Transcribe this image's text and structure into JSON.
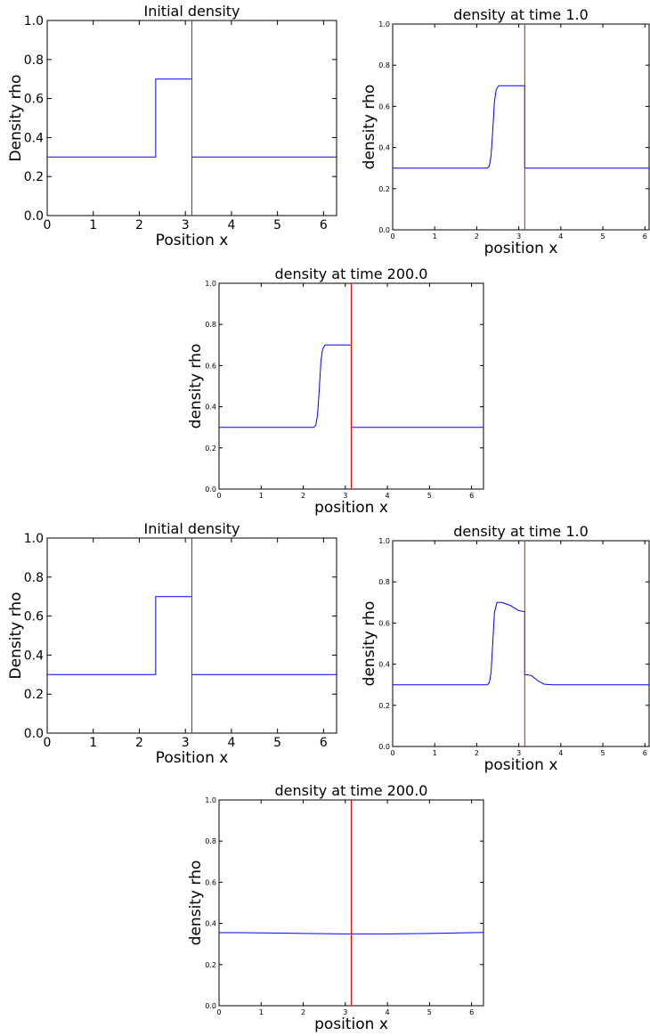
{
  "chart_data": [
    {
      "type": "line",
      "title": "Initial density",
      "xlabel": "Position x",
      "ylabel": "Density rho",
      "xlim": [
        0,
        6.283
      ],
      "ylim": [
        0,
        1
      ],
      "xticks": [
        "0",
        "1",
        "2",
        "3",
        "4",
        "5",
        "6"
      ],
      "yticks": [
        "0.0",
        "0.2",
        "0.4",
        "0.6",
        "0.8",
        "1.0"
      ],
      "vertical_line": {
        "x": 3.14159,
        "color": "#ff0000"
      },
      "series": [
        {
          "color": "#0000ff",
          "x": [
            0,
            2.356,
            2.356,
            3.14159,
            3.14159,
            6.283
          ],
          "y": [
            0.3,
            0.3,
            0.7,
            0.7,
            0.3,
            0.3
          ]
        }
      ]
    },
    {
      "type": "line",
      "title": "density at time 1.0",
      "xlabel": "position x",
      "ylabel": "density rho",
      "xlim": [
        0,
        6.1
      ],
      "ylim": [
        0,
        1
      ],
      "xticks": [
        "0",
        "1",
        "2",
        "3",
        "4",
        "5",
        "6"
      ],
      "yticks": [
        "0.0",
        "0.2",
        "0.4",
        "0.6",
        "0.8",
        "1.0"
      ],
      "vertical_line": {
        "x": 3.14159,
        "color": "#ff0000"
      },
      "series": [
        {
          "color": "#0000ff",
          "x": [
            0,
            2.25,
            2.3,
            2.34,
            2.38,
            2.42,
            2.46,
            2.52,
            2.6,
            3.14,
            3.14,
            6.1
          ],
          "y": [
            0.3,
            0.3,
            0.31,
            0.36,
            0.48,
            0.62,
            0.68,
            0.7,
            0.7,
            0.7,
            0.3,
            0.3
          ]
        }
      ]
    },
    {
      "type": "line",
      "title": "density at time 200.0",
      "xlabel": "position x",
      "ylabel": "density rho",
      "xlim": [
        0,
        6.283
      ],
      "ylim": [
        0,
        1
      ],
      "xticks": [
        "0",
        "1",
        "2",
        "3",
        "4",
        "5",
        "6"
      ],
      "yticks": [
        "0.0",
        "0.2",
        "0.4",
        "0.6",
        "0.8",
        "1.0"
      ],
      "vertical_line": {
        "x": 3.14159,
        "color": "#ff0000"
      },
      "series": [
        {
          "color": "#0000ff",
          "x": [
            0,
            2.25,
            2.3,
            2.34,
            2.38,
            2.42,
            2.46,
            2.52,
            2.6,
            3.14,
            3.14,
            6.283
          ],
          "y": [
            0.3,
            0.3,
            0.31,
            0.36,
            0.48,
            0.62,
            0.68,
            0.7,
            0.7,
            0.7,
            0.3,
            0.3
          ]
        }
      ]
    },
    {
      "type": "line",
      "title": "Initial density",
      "xlabel": "Position x",
      "ylabel": "Density rho",
      "xlim": [
        0,
        6.283
      ],
      "ylim": [
        0,
        1
      ],
      "xticks": [
        "0",
        "1",
        "2",
        "3",
        "4",
        "5",
        "6"
      ],
      "yticks": [
        "0.0",
        "0.2",
        "0.4",
        "0.6",
        "0.8",
        "1.0"
      ],
      "vertical_line": {
        "x": 3.14159,
        "color": "#ff0000"
      },
      "series": [
        {
          "color": "#0000ff",
          "x": [
            0,
            2.356,
            2.356,
            3.14159,
            3.14159,
            6.283
          ],
          "y": [
            0.3,
            0.3,
            0.7,
            0.7,
            0.3,
            0.3
          ]
        }
      ]
    },
    {
      "type": "line",
      "title": "density at time 1.0",
      "xlabel": "position x",
      "ylabel": "density rho",
      "xlim": [
        0,
        6.1
      ],
      "ylim": [
        0,
        1
      ],
      "xticks": [
        "0",
        "1",
        "2",
        "3",
        "4",
        "5",
        "6"
      ],
      "yticks": [
        "0.0",
        "0.2",
        "0.4",
        "0.6",
        "0.8",
        "1.0"
      ],
      "vertical_line": {
        "x": 3.14159,
        "color": "#ff0000"
      },
      "series": [
        {
          "color": "#0000ff",
          "x": [
            0,
            2.25,
            2.3,
            2.34,
            2.38,
            2.42,
            2.48,
            2.6,
            2.8,
            3.0,
            3.14,
            3.14,
            3.3,
            3.45,
            3.6,
            3.8,
            4.2,
            6.1
          ],
          "y": [
            0.3,
            0.3,
            0.31,
            0.36,
            0.5,
            0.65,
            0.7,
            0.7,
            0.685,
            0.66,
            0.655,
            0.35,
            0.345,
            0.32,
            0.303,
            0.3,
            0.3,
            0.3
          ]
        }
      ]
    },
    {
      "type": "line",
      "title": "density at time 200.0",
      "xlabel": "position x",
      "ylabel": "density rho",
      "xlim": [
        0,
        6.283
      ],
      "ylim": [
        0,
        1
      ],
      "xticks": [
        "0",
        "1",
        "2",
        "3",
        "4",
        "5",
        "6"
      ],
      "yticks": [
        "0.0",
        "0.2",
        "0.4",
        "0.6",
        "0.8",
        "1.0"
      ],
      "vertical_line": {
        "x": 3.14159,
        "color": "#ff0000"
      },
      "series": [
        {
          "color": "#0000ff",
          "x": [
            0,
            0.5,
            1.0,
            1.5,
            2.0,
            2.5,
            3.0,
            3.5,
            4.0,
            4.5,
            5.0,
            5.5,
            6.0,
            6.283
          ],
          "y": [
            0.355,
            0.355,
            0.354,
            0.353,
            0.351,
            0.35,
            0.349,
            0.349,
            0.349,
            0.35,
            0.351,
            0.353,
            0.355,
            0.356
          ]
        }
      ]
    }
  ]
}
